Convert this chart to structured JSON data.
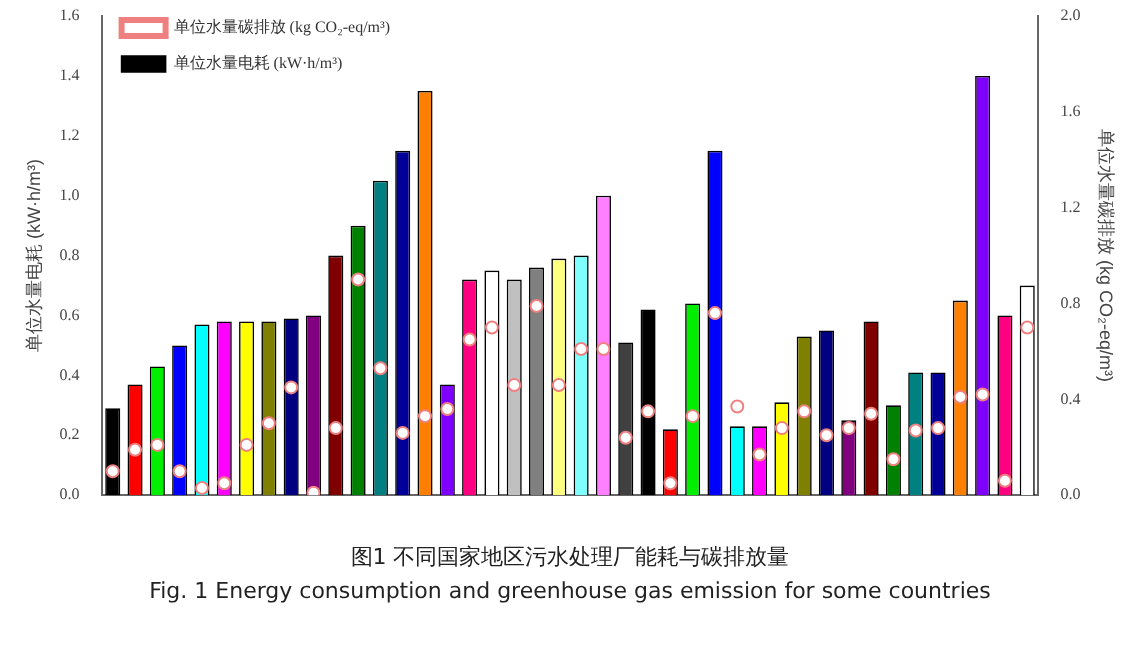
{
  "chart_data": {
    "type": "bar",
    "ylabel": "单位水量电耗 (kW·h/m³)",
    "y2label": "单位水量碳排放 (kg CO₂-eq/m³)",
    "categories": [
      null,
      null,
      null,
      null,
      null,
      null,
      null,
      null,
      null,
      null,
      null,
      null,
      null,
      null,
      null,
      null,
      null,
      null,
      null,
      null,
      null,
      null,
      null,
      null,
      null,
      null,
      null,
      null,
      null,
      null,
      null,
      null,
      null,
      null,
      null,
      null,
      null,
      null,
      null,
      null,
      null,
      null
    ],
    "series": [
      {
        "name": "单位水量电耗 (kW·h/m³)",
        "color": "#000000",
        "values": [
          0.29,
          0.37,
          0.43,
          0.5,
          0.57,
          0.58,
          0.58,
          0.58,
          0.59,
          0.6,
          0.8,
          0.9,
          1.05,
          1.15,
          1.35,
          0.37,
          0.72,
          0.75,
          0.72,
          0.76,
          0.79,
          0.8,
          1.0,
          0.51,
          0.62,
          0.22,
          0.64,
          1.15,
          0.23,
          0.23,
          0.31,
          0.53,
          0.55,
          0.25,
          0.58,
          0.3,
          0.41,
          0.41,
          0.65,
          1.4,
          0.6,
          0.7
        ],
        "colors": [
          "#000000",
          "#ff0000",
          "#00ee00",
          "#0000ff",
          "#00ffff",
          "#ff00ff",
          "#ffff00",
          "#808000",
          "#000080",
          "#800080",
          "#800000",
          "#008000",
          "#008080",
          "#000099",
          "#ff8000",
          "#8000ff",
          "#ff0080",
          "#ffffff",
          "#c0c0c0",
          "#808080",
          "#ffff80",
          "#80ffff",
          "#ff80ff",
          "#404040",
          "#000000",
          "#ff0000",
          "#00ee00",
          "#0000ff",
          "#00ffff",
          "#ff00ff",
          "#ffff00",
          "#808000",
          "#000080",
          "#800080",
          "#800000",
          "#008000",
          "#008080",
          "#000099",
          "#ff8000",
          "#8000ff",
          "#ff0080",
          "#ffffff"
        ]
      },
      {
        "name": "单位水量碳排放 (kg CO₂-eq/m³)",
        "type": "scatter",
        "axis": "y2",
        "color": "#f08080",
        "values": [
          0.1,
          0.19,
          0.21,
          0.1,
          0.03,
          0.05,
          0.21,
          0.3,
          0.45,
          0.01,
          0.28,
          0.9,
          0.53,
          0.26,
          0.33,
          0.36,
          0.65,
          0.7,
          0.46,
          0.79,
          0.46,
          0.61,
          0.61,
          0.24,
          0.35,
          0.05,
          0.33,
          0.76,
          0.37,
          0.17,
          0.28,
          0.35,
          0.25,
          0.28,
          0.34,
          0.15,
          0.27,
          0.28,
          0.41,
          0.42,
          0.06,
          0.7
        ]
      }
    ],
    "ylim": [
      0,
      1.6
    ],
    "yticks": [
      {
        "value": 0,
        "label": "0.0"
      },
      0.2,
      0.4,
      0.6,
      0.8,
      {
        "value": 1,
        "label": "1.0"
      },
      1.2,
      1.4,
      1.6
    ],
    "y2lim": [
      0,
      2.0
    ],
    "y2ticks": [
      {
        "value": 0,
        "label": "0.0"
      },
      0.4,
      0.8,
      1.2,
      1.6,
      {
        "value": 2,
        "label": "2.0"
      }
    ],
    "legend": "top left",
    "grid": false,
    "marker": "circle",
    "annotations": [
      "图1 不同国家地区污水处理厂能耗与碳排放量",
      "Fig. 1 Energy consumption and greenhouse gas emission for some countries"
    ]
  }
}
